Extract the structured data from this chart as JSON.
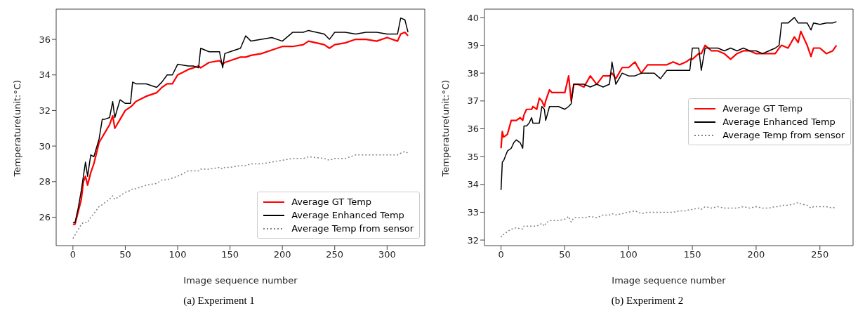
{
  "chart_data": [
    {
      "type": "line",
      "xlabel": "Image sequence number",
      "ylabel": "Temperature(unit:°C)",
      "annotations": [
        "(a)  Experiment 1"
      ],
      "legend": "bottom right",
      "grid": false,
      "xlim": [
        -16,
        336
      ],
      "xticks": [
        0,
        50,
        100,
        150,
        200,
        250,
        300
      ],
      "ylim": [
        24.4,
        37.7
      ],
      "yticks": [
        26,
        28,
        30,
        32,
        34,
        36
      ],
      "x": [
        0,
        2,
        5,
        8,
        10,
        12,
        14,
        17,
        20,
        25,
        28,
        30,
        35,
        38,
        40,
        45,
        50,
        55,
        57,
        60,
        70,
        80,
        85,
        90,
        95,
        100,
        110,
        115,
        120,
        122,
        130,
        140,
        143,
        145,
        150,
        160,
        165,
        170,
        180,
        190,
        200,
        210,
        220,
        225,
        240,
        245,
        250,
        260,
        270,
        280,
        290,
        300,
        310,
        313,
        317,
        320
      ],
      "series": [
        {
          "name": "Average GT Temp",
          "color": "#ff0000",
          "line_style": "solid",
          "values": [
            25.6,
            25.6,
            26.3,
            27.0,
            28.0,
            28.3,
            27.8,
            28.5,
            29.0,
            30.2,
            30.5,
            30.7,
            31.2,
            31.7,
            31.0,
            31.5,
            32.0,
            32.2,
            32.3,
            32.5,
            32.8,
            33.0,
            33.3,
            33.5,
            33.5,
            34.0,
            34.3,
            34.4,
            34.5,
            34.4,
            34.7,
            34.8,
            34.6,
            34.7,
            34.8,
            35.0,
            35.0,
            35.1,
            35.2,
            35.4,
            35.6,
            35.6,
            35.7,
            35.9,
            35.7,
            35.5,
            35.7,
            35.8,
            36.0,
            36.0,
            35.9,
            36.1,
            35.9,
            36.3,
            36.4,
            36.2
          ]
        },
        {
          "name": "Average Enhanced Temp",
          "color": "#000000",
          "line_style": "solid",
          "values": [
            25.7,
            25.7,
            26.5,
            27.5,
            28.3,
            29.1,
            28.3,
            29.5,
            29.4,
            30.4,
            31.5,
            31.5,
            31.6,
            32.5,
            31.6,
            32.6,
            32.4,
            32.4,
            33.6,
            33.5,
            33.5,
            33.3,
            33.6,
            34.0,
            34.0,
            34.6,
            34.5,
            34.5,
            34.4,
            35.5,
            35.3,
            35.3,
            34.4,
            35.2,
            35.3,
            35.5,
            36.2,
            35.9,
            36.0,
            36.1,
            35.9,
            36.4,
            36.4,
            36.5,
            36.3,
            36.0,
            36.4,
            36.4,
            36.3,
            36.4,
            36.4,
            36.3,
            36.3,
            37.2,
            37.1,
            36.4
          ]
        },
        {
          "name": "Average Temp from sensor",
          "color": "#808080",
          "line_style": "dotted",
          "values": [
            24.8,
            25.0,
            25.3,
            25.6,
            25.7,
            25.7,
            25.7,
            26.0,
            26.2,
            26.6,
            26.7,
            26.8,
            27.0,
            27.2,
            27.0,
            27.2,
            27.4,
            27.5,
            27.6,
            27.6,
            27.8,
            27.9,
            28.1,
            28.1,
            28.2,
            28.3,
            28.6,
            28.6,
            28.6,
            28.7,
            28.7,
            28.8,
            28.7,
            28.8,
            28.8,
            28.9,
            28.9,
            29.0,
            29.0,
            29.1,
            29.2,
            29.3,
            29.3,
            29.4,
            29.3,
            29.2,
            29.3,
            29.3,
            29.5,
            29.5,
            29.5,
            29.5,
            29.5,
            29.6,
            29.7,
            29.6
          ]
        }
      ]
    },
    {
      "type": "line",
      "xlabel": "Image sequence number",
      "ylabel": "Temperature(unit:°C)",
      "annotations": [
        "(b)  Experiment 2"
      ],
      "legend": "right",
      "grid": false,
      "xlim": [
        -13,
        276
      ],
      "xticks": [
        0,
        50,
        100,
        150,
        200,
        250
      ],
      "ylim": [
        31.8,
        40.3
      ],
      "yticks": [
        32,
        33,
        34,
        35,
        36,
        37,
        38,
        39,
        40
      ],
      "x": [
        0,
        1,
        2,
        5,
        8,
        10,
        12,
        15,
        17,
        18,
        20,
        22,
        24,
        25,
        28,
        30,
        32,
        34,
        35,
        38,
        40,
        45,
        50,
        53,
        55,
        57,
        60,
        65,
        70,
        75,
        80,
        85,
        87,
        90,
        95,
        100,
        105,
        110,
        115,
        120,
        125,
        130,
        135,
        140,
        145,
        148,
        150,
        155,
        157,
        160,
        165,
        170,
        175,
        180,
        185,
        190,
        195,
        200,
        205,
        210,
        215,
        218,
        220,
        225,
        230,
        233,
        235,
        240,
        243,
        245,
        250,
        255,
        260,
        263
      ],
      "series": [
        {
          "name": "Average GT Temp",
          "color": "#ff0000",
          "line_style": "solid",
          "values": [
            35.3,
            35.9,
            35.7,
            35.8,
            36.3,
            36.3,
            36.3,
            36.4,
            36.3,
            36.5,
            36.7,
            36.7,
            36.7,
            36.8,
            36.7,
            37.1,
            37.0,
            36.8,
            37.0,
            37.4,
            37.3,
            37.3,
            37.3,
            37.9,
            37.0,
            37.6,
            37.6,
            37.5,
            37.9,
            37.6,
            37.9,
            37.9,
            38.0,
            37.8,
            38.2,
            38.2,
            38.4,
            38.0,
            38.3,
            38.3,
            38.3,
            38.3,
            38.4,
            38.3,
            38.4,
            38.5,
            38.5,
            38.7,
            38.7,
            39.0,
            38.8,
            38.8,
            38.7,
            38.5,
            38.7,
            38.8,
            38.8,
            38.7,
            38.7,
            38.7,
            38.7,
            38.9,
            39.0,
            38.9,
            39.3,
            39.1,
            39.5,
            39.0,
            38.6,
            38.9,
            38.9,
            38.7,
            38.8,
            39.0
          ]
        },
        {
          "name": "Average Enhanced Temp",
          "color": "#000000",
          "line_style": "solid",
          "values": [
            33.8,
            34.8,
            34.85,
            35.2,
            35.3,
            35.5,
            35.6,
            35.5,
            35.3,
            36.1,
            36.1,
            36.2,
            36.4,
            36.2,
            36.2,
            36.2,
            36.8,
            36.7,
            36.3,
            36.8,
            36.8,
            36.8,
            36.7,
            36.8,
            36.9,
            37.6,
            37.6,
            37.6,
            37.5,
            37.6,
            37.5,
            37.6,
            38.4,
            37.6,
            38.0,
            37.9,
            37.9,
            38.0,
            38.0,
            38.0,
            37.8,
            38.1,
            38.1,
            38.1,
            38.1,
            38.1,
            38.9,
            38.9,
            38.1,
            38.9,
            38.9,
            38.9,
            38.8,
            38.9,
            38.8,
            38.9,
            38.8,
            38.8,
            38.7,
            38.8,
            38.9,
            39.0,
            39.8,
            39.8,
            40.0,
            39.8,
            39.8,
            39.8,
            39.55,
            39.8,
            39.75,
            39.8,
            39.8,
            39.85
          ]
        },
        {
          "name": "Average Temp from sensor",
          "color": "#808080",
          "line_style": "dotted",
          "values": [
            32.1,
            32.2,
            32.2,
            32.3,
            32.4,
            32.4,
            32.45,
            32.4,
            32.4,
            32.5,
            32.5,
            32.5,
            32.5,
            32.5,
            32.5,
            32.55,
            32.6,
            32.5,
            32.6,
            32.7,
            32.7,
            32.7,
            32.75,
            32.85,
            32.65,
            32.8,
            32.8,
            32.8,
            32.85,
            32.8,
            32.9,
            32.9,
            32.95,
            32.9,
            32.95,
            33.0,
            33.05,
            32.95,
            33.0,
            33.0,
            33.0,
            33.0,
            33.0,
            33.05,
            33.05,
            33.1,
            33.1,
            33.15,
            33.1,
            33.2,
            33.15,
            33.2,
            33.15,
            33.15,
            33.15,
            33.2,
            33.15,
            33.2,
            33.15,
            33.15,
            33.2,
            33.2,
            33.25,
            33.25,
            33.3,
            33.35,
            33.3,
            33.25,
            33.15,
            33.2,
            33.2,
            33.2,
            33.15,
            33.2
          ]
        }
      ]
    }
  ]
}
